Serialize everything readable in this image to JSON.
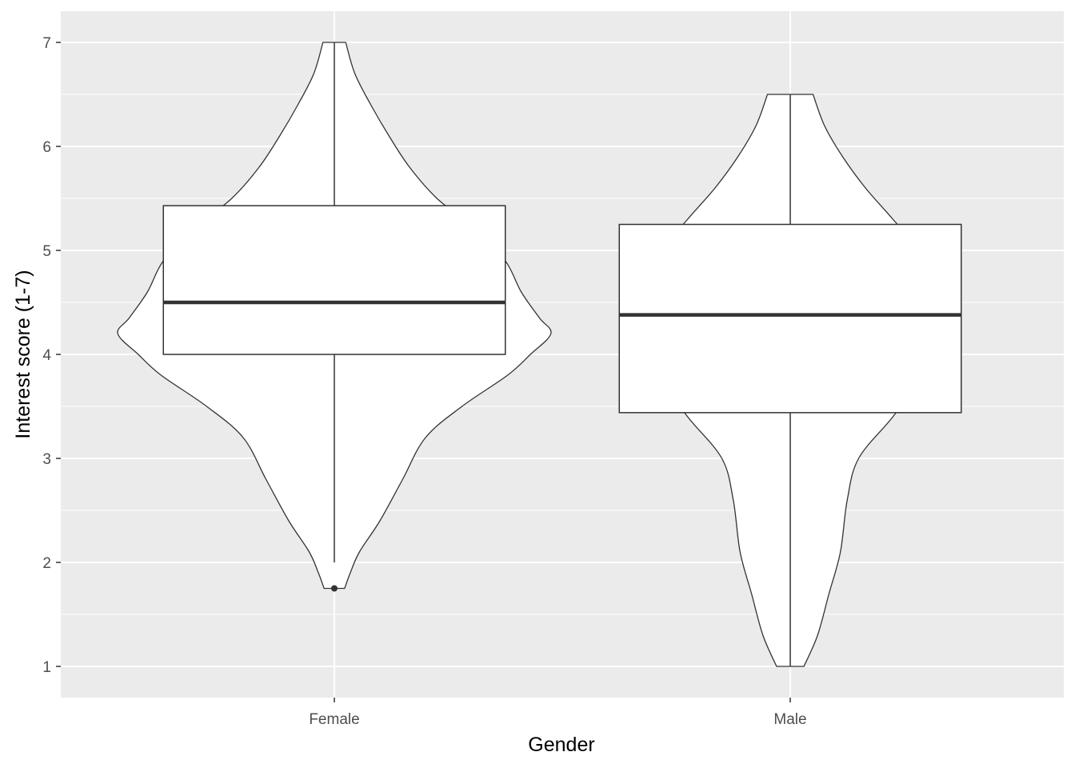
{
  "chart_data": {
    "type": "violin",
    "xlabel": "Gender",
    "ylabel": "Interest score (1-7)",
    "categories": [
      "Female",
      "Male"
    ],
    "ylim": [
      0.7,
      7.3
    ],
    "y_ticks": [
      1,
      2,
      3,
      4,
      5,
      6,
      7
    ],
    "grid": true,
    "legend": "none",
    "colors": {
      "panel": "#ebebeb",
      "grid": "#ffffff",
      "fill": "#ffffff",
      "outline": "#333333",
      "tick_text": "#4d4d4d"
    },
    "groups": [
      {
        "category": "Female",
        "box": {
          "q1": 4.0,
          "median": 4.5,
          "q3": 5.43,
          "whisker_low": 2.0,
          "whisker_high": 7.0
        },
        "outliers": [
          1.75
        ],
        "violin": {
          "y": [
            1.75,
            1.9,
            2.1,
            2.4,
            2.8,
            3.2,
            3.5,
            3.8,
            4.0,
            4.2,
            4.35,
            4.6,
            4.9,
            5.2,
            5.5,
            5.8,
            6.1,
            6.4,
            6.7,
            7.0
          ],
          "width": [
            0.045,
            0.07,
            0.11,
            0.2,
            0.3,
            0.4,
            0.56,
            0.76,
            0.86,
            0.95,
            0.9,
            0.82,
            0.75,
            0.62,
            0.45,
            0.33,
            0.24,
            0.16,
            0.09,
            0.05
          ]
        }
      },
      {
        "category": "Male",
        "box": {
          "q1": 3.44,
          "median": 4.38,
          "q3": 5.25,
          "whisker_low": 1.0,
          "whisker_high": 6.5
        },
        "outliers": [],
        "violin": {
          "y": [
            1.0,
            1.3,
            1.7,
            2.1,
            2.6,
            3.0,
            3.4,
            3.8,
            4.2,
            4.6,
            5.0,
            5.3,
            5.6,
            5.9,
            6.2,
            6.5
          ],
          "width": [
            0.06,
            0.12,
            0.17,
            0.22,
            0.25,
            0.3,
            0.45,
            0.58,
            0.62,
            0.6,
            0.56,
            0.45,
            0.33,
            0.23,
            0.15,
            0.1
          ]
        }
      }
    ]
  }
}
